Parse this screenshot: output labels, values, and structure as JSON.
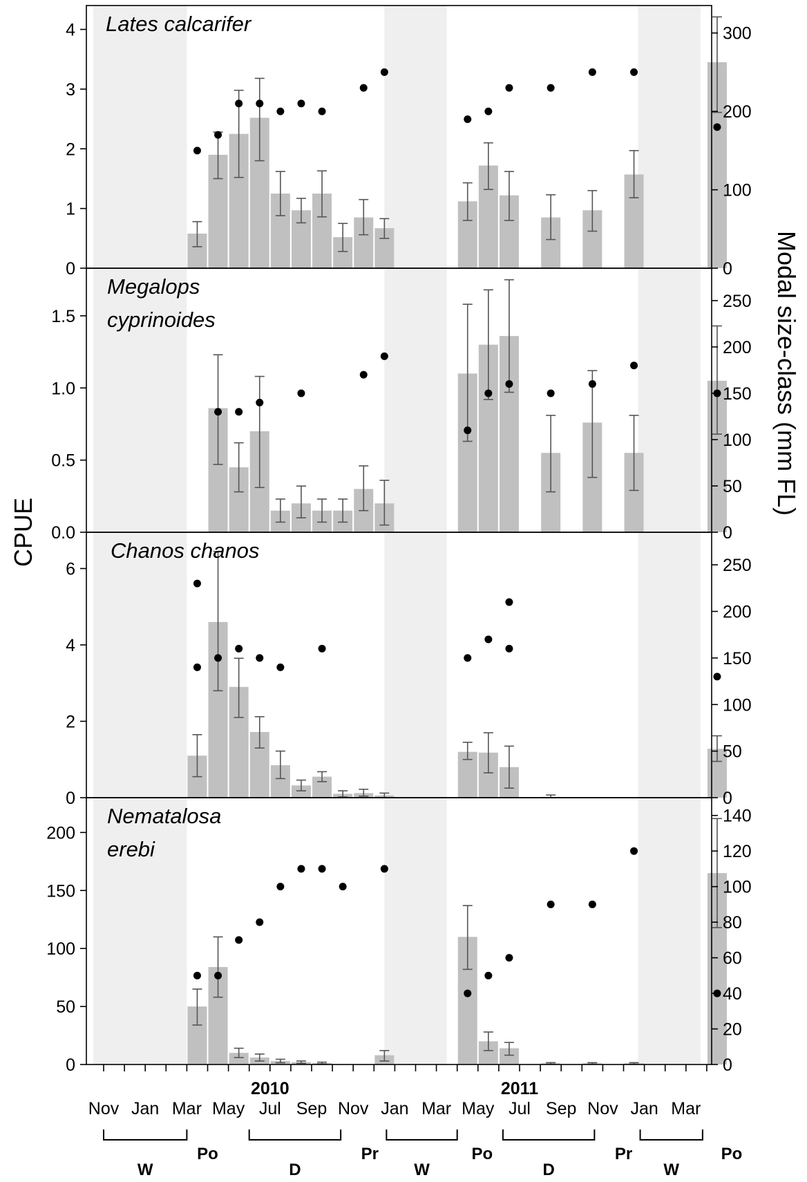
{
  "chart_data": {
    "type": "bar",
    "overlay": "scatter",
    "y_axis_label": "CPUE",
    "y2_axis_label": "Modal size-class (mm FL)",
    "month_tick_labels": [
      "Nov",
      "Jan",
      "Mar",
      "May",
      "Jul",
      "Sep",
      "Nov",
      "Jan",
      "Mar",
      "May",
      "Jul",
      "Sep",
      "Nov",
      "Jan",
      "Mar"
    ],
    "year_labels": [
      "2010",
      "2011"
    ],
    "seasons": [
      {
        "label": "W",
        "from": 0,
        "to": 2,
        "type": "bracket"
      },
      {
        "label": "Po",
        "type": "text",
        "at": 2.5
      },
      {
        "label": "D",
        "from": 3.5,
        "to": 5.7,
        "type": "bracket"
      },
      {
        "label": "Pr",
        "type": "text",
        "at": 6.4
      },
      {
        "label": "W",
        "from": 6.8,
        "to": 8.5,
        "type": "bracket"
      },
      {
        "label": "Po",
        "type": "text",
        "at": 9.1
      },
      {
        "label": "D",
        "from": 9.6,
        "to": 11.8,
        "type": "bracket"
      },
      {
        "label": "Pr",
        "type": "text",
        "at": 12.5
      },
      {
        "label": "W",
        "from": 12.9,
        "to": 14.4,
        "type": "bracket"
      },
      {
        "label": "Po",
        "type": "text",
        "at": 15.1
      }
    ],
    "shaded_periods": [
      [
        -0.25,
        2.0
      ],
      [
        6.75,
        8.25
      ],
      [
        12.85,
        14.35
      ]
    ],
    "grid": false,
    "panels": [
      {
        "species": [
          "Lates calcarifer"
        ],
        "ylim": [
          0,
          4.4
        ],
        "y_ticks": [
          "0",
          "1",
          "2",
          "3",
          "4"
        ],
        "y_tick_values": [
          0,
          1,
          2,
          3,
          4
        ],
        "y2lim": [
          0,
          335
        ],
        "y2_ticks": [
          "0",
          "100",
          "200",
          "300"
        ],
        "y2_tick_values": [
          0,
          100,
          200,
          300
        ],
        "bars": [
          {
            "x": 2.25,
            "value": 0.58,
            "err": [
              0.36,
              0.78
            ]
          },
          {
            "x": 2.75,
            "value": 1.9,
            "err": [
              1.5,
              2.28
            ]
          },
          {
            "x": 3.25,
            "value": 2.25,
            "err": [
              1.52,
              2.98
            ]
          },
          {
            "x": 3.75,
            "value": 2.52,
            "err": [
              1.8,
              3.18
            ]
          },
          {
            "x": 4.25,
            "value": 1.25,
            "err": [
              0.88,
              1.62
            ]
          },
          {
            "x": 4.75,
            "value": 0.97,
            "err": [
              0.76,
              1.17
            ]
          },
          {
            "x": 5.25,
            "value": 1.25,
            "err": [
              0.86,
              1.63
            ]
          },
          {
            "x": 5.75,
            "value": 0.52,
            "err": [
              0.28,
              0.75
            ]
          },
          {
            "x": 6.25,
            "value": 0.85,
            "err": [
              0.56,
              1.15
            ]
          },
          {
            "x": 6.75,
            "value": 0.67,
            "err": [
              0.5,
              0.83
            ]
          },
          {
            "x": 8.75,
            "value": 1.12,
            "err": [
              0.8,
              1.43
            ]
          },
          {
            "x": 9.25,
            "value": 1.72,
            "err": [
              1.32,
              2.1
            ]
          },
          {
            "x": 9.75,
            "value": 1.22,
            "err": [
              0.8,
              1.62
            ]
          },
          {
            "x": 10.75,
            "value": 0.85,
            "err": [
              0.48,
              1.23
            ]
          },
          {
            "x": 11.75,
            "value": 0.97,
            "err": [
              0.62,
              1.3
            ]
          },
          {
            "x": 12.75,
            "value": 1.57,
            "err": [
              1.18,
              1.97
            ]
          },
          {
            "x": 14.75,
            "value": 3.45,
            "err": [
              2.61,
              4.21
            ]
          }
        ],
        "points": [
          {
            "x": 2.25,
            "value": 150
          },
          {
            "x": 2.75,
            "value": 170
          },
          {
            "x": 3.25,
            "value": 210
          },
          {
            "x": 3.75,
            "value": 210
          },
          {
            "x": 4.25,
            "value": 200
          },
          {
            "x": 4.75,
            "value": 210
          },
          {
            "x": 5.25,
            "value": 200
          },
          {
            "x": 6.25,
            "value": 230
          },
          {
            "x": 6.75,
            "value": 250
          },
          {
            "x": 8.75,
            "value": 190
          },
          {
            "x": 9.25,
            "value": 200
          },
          {
            "x": 9.75,
            "value": 230
          },
          {
            "x": 10.75,
            "value": 230
          },
          {
            "x": 11.75,
            "value": 250
          },
          {
            "x": 12.75,
            "value": 250
          },
          {
            "x": 14.75,
            "value": 180
          }
        ]
      },
      {
        "species": [
          "Megalops",
          "cyprinoides"
        ],
        "ylim": [
          0,
          1.83
        ],
        "y_ticks": [
          "0.0",
          "0.5",
          "1.0",
          "1.5"
        ],
        "y_tick_values": [
          0,
          0.5,
          1.0,
          1.5
        ],
        "y2lim": [
          0,
          285
        ],
        "y2_ticks": [
          "0",
          "50",
          "100",
          "150",
          "200",
          "250"
        ],
        "y2_tick_values": [
          0,
          50,
          100,
          150,
          200,
          250
        ],
        "bars": [
          {
            "x": 2.75,
            "value": 0.86,
            "err": [
              0.47,
              1.23
            ]
          },
          {
            "x": 3.25,
            "value": 0.45,
            "err": [
              0.28,
              0.62
            ]
          },
          {
            "x": 3.75,
            "value": 0.7,
            "err": [
              0.31,
              1.08
            ]
          },
          {
            "x": 4.25,
            "value": 0.15,
            "err": [
              0.07,
              0.23
            ]
          },
          {
            "x": 4.75,
            "value": 0.2,
            "err": [
              0.1,
              0.32
            ]
          },
          {
            "x": 5.25,
            "value": 0.15,
            "err": [
              0.07,
              0.23
            ]
          },
          {
            "x": 5.75,
            "value": 0.15,
            "err": [
              0.07,
              0.23
            ]
          },
          {
            "x": 6.25,
            "value": 0.3,
            "err": [
              0.15,
              0.46
            ]
          },
          {
            "x": 6.75,
            "value": 0.2,
            "err": [
              0.05,
              0.36
            ]
          },
          {
            "x": 8.75,
            "value": 1.1,
            "err": [
              0.63,
              1.58
            ]
          },
          {
            "x": 9.25,
            "value": 1.3,
            "err": [
              0.92,
              1.68
            ]
          },
          {
            "x": 9.75,
            "value": 1.36,
            "err": [
              0.97,
              1.75
            ]
          },
          {
            "x": 10.75,
            "value": 0.55,
            "err": [
              0.28,
              0.81
            ]
          },
          {
            "x": 11.75,
            "value": 0.76,
            "err": [
              0.38,
              1.12
            ]
          },
          {
            "x": 12.75,
            "value": 0.55,
            "err": [
              0.29,
              0.81
            ]
          },
          {
            "x": 14.75,
            "value": 1.05,
            "err": [
              0.68,
              1.43
            ]
          }
        ],
        "points": [
          {
            "x": 2.75,
            "value": 130
          },
          {
            "x": 3.25,
            "value": 130
          },
          {
            "x": 3.75,
            "value": 140
          },
          {
            "x": 4.75,
            "value": 150
          },
          {
            "x": 6.25,
            "value": 170
          },
          {
            "x": 6.75,
            "value": 190
          },
          {
            "x": 8.75,
            "value": 110
          },
          {
            "x": 9.25,
            "value": 150
          },
          {
            "x": 9.75,
            "value": 160
          },
          {
            "x": 10.75,
            "value": 150
          },
          {
            "x": 11.75,
            "value": 160
          },
          {
            "x": 12.75,
            "value": 180
          },
          {
            "x": 14.75,
            "value": 150
          }
        ]
      },
      {
        "species": [
          "Chanos chanos"
        ],
        "ylim": [
          0,
          6.95
        ],
        "y_ticks": [
          "0",
          "2",
          "4",
          "6"
        ],
        "y_tick_values": [
          0,
          2,
          4,
          6
        ],
        "y2lim": [
          0,
          285
        ],
        "y2_ticks": [
          "0",
          "50",
          "100",
          "150",
          "200",
          "250"
        ],
        "y2_tick_values": [
          0,
          50,
          100,
          150,
          200,
          250
        ],
        "bars": [
          {
            "x": 2.25,
            "value": 1.1,
            "err": [
              0.55,
              1.65
            ]
          },
          {
            "x": 2.75,
            "value": 4.6,
            "err": [
              2.8,
              6.45
            ]
          },
          {
            "x": 3.25,
            "value": 2.9,
            "err": [
              2.1,
              3.65
            ]
          },
          {
            "x": 3.75,
            "value": 1.72,
            "err": [
              1.3,
              2.12
            ]
          },
          {
            "x": 4.25,
            "value": 0.85,
            "err": [
              0.5,
              1.22
            ]
          },
          {
            "x": 4.75,
            "value": 0.32,
            "err": [
              0.18,
              0.46
            ]
          },
          {
            "x": 5.25,
            "value": 0.55,
            "err": [
              0.42,
              0.68
            ]
          },
          {
            "x": 5.75,
            "value": 0.1,
            "err": [
              0.02,
              0.18
            ]
          },
          {
            "x": 6.25,
            "value": 0.12,
            "err": [
              0.04,
              0.22
            ]
          },
          {
            "x": 6.75,
            "value": 0.06,
            "err": [
              0.0,
              0.12
            ]
          },
          {
            "x": 8.75,
            "value": 1.2,
            "err": [
              1.0,
              1.45
            ]
          },
          {
            "x": 9.25,
            "value": 1.18,
            "err": [
              0.65,
              1.7
            ]
          },
          {
            "x": 9.75,
            "value": 0.8,
            "err": [
              0.25,
              1.35
            ]
          },
          {
            "x": 10.75,
            "value": 0.02,
            "err": [
              0.0,
              0.07
            ]
          },
          {
            "x": 14.75,
            "value": 1.28,
            "err": [
              0.95,
              1.62
            ]
          }
        ],
        "points": [
          {
            "x": 2.25,
            "value": 230
          },
          {
            "x": 2.25,
            "value": 140
          },
          {
            "x": 2.75,
            "value": 150
          },
          {
            "x": 3.25,
            "value": 160
          },
          {
            "x": 3.75,
            "value": 150
          },
          {
            "x": 4.25,
            "value": 140
          },
          {
            "x": 5.25,
            "value": 160
          },
          {
            "x": 8.75,
            "value": 150
          },
          {
            "x": 9.25,
            "value": 170
          },
          {
            "x": 9.75,
            "value": 210
          },
          {
            "x": 9.75,
            "value": 160
          },
          {
            "x": 14.75,
            "value": 130
          }
        ]
      },
      {
        "species": [
          "Nematalosa",
          "erebi"
        ],
        "ylim": [
          0,
          230
        ],
        "y_ticks": [
          "0",
          "50",
          "100",
          "150",
          "200"
        ],
        "y_tick_values": [
          0,
          50,
          100,
          150,
          200
        ],
        "y2lim": [
          0,
          150
        ],
        "y2_ticks": [
          "0",
          "20",
          "40",
          "60",
          "80",
          "100",
          "120",
          "140"
        ],
        "y2_tick_values": [
          0,
          20,
          40,
          60,
          80,
          100,
          120,
          140
        ],
        "bars": [
          {
            "x": 2.25,
            "value": 50,
            "err": [
              34,
              65
            ]
          },
          {
            "x": 2.75,
            "value": 84,
            "err": [
              58,
              110
            ]
          },
          {
            "x": 3.25,
            "value": 10,
            "err": [
              6,
              14
            ]
          },
          {
            "x": 3.75,
            "value": 6,
            "err": [
              3,
              9
            ]
          },
          {
            "x": 4.25,
            "value": 3,
            "err": [
              1.5,
              4.5
            ]
          },
          {
            "x": 4.75,
            "value": 2,
            "err": [
              1,
              3
            ]
          },
          {
            "x": 5.25,
            "value": 1.2,
            "err": [
              0.5,
              2
            ]
          },
          {
            "x": 6.75,
            "value": 8,
            "err": [
              3,
              12
            ]
          },
          {
            "x": 8.75,
            "value": 110,
            "err": [
              82,
              137
            ]
          },
          {
            "x": 9.25,
            "value": 20,
            "err": [
              12,
              28
            ]
          },
          {
            "x": 9.75,
            "value": 14,
            "err": [
              8,
              19
            ]
          },
          {
            "x": 10.75,
            "value": 1,
            "err": [
              0.3,
              1.6
            ]
          },
          {
            "x": 11.75,
            "value": 1,
            "err": [
              0.3,
              1.6
            ]
          },
          {
            "x": 12.75,
            "value": 1,
            "err": [
              0.3,
              1.6
            ]
          },
          {
            "x": 14.75,
            "value": 165,
            "err": [
              118,
              212
            ]
          }
        ],
        "points": [
          {
            "x": 2.25,
            "value": 50
          },
          {
            "x": 2.75,
            "value": 50
          },
          {
            "x": 3.25,
            "value": 70
          },
          {
            "x": 3.75,
            "value": 80
          },
          {
            "x": 4.25,
            "value": 100
          },
          {
            "x": 4.75,
            "value": 110
          },
          {
            "x": 5.25,
            "value": 110
          },
          {
            "x": 5.75,
            "value": 100
          },
          {
            "x": 6.75,
            "value": 110
          },
          {
            "x": 8.75,
            "value": 40
          },
          {
            "x": 9.25,
            "value": 50
          },
          {
            "x": 9.75,
            "value": 60
          },
          {
            "x": 10.75,
            "value": 90
          },
          {
            "x": 11.75,
            "value": 90
          },
          {
            "x": 12.75,
            "value": 120
          },
          {
            "x": 14.75,
            "value": 40
          }
        ]
      }
    ],
    "colors": {
      "bar": "#c0c0c0",
      "shade": "#efefef",
      "point": "#000000",
      "errorbar": "#555555"
    }
  }
}
